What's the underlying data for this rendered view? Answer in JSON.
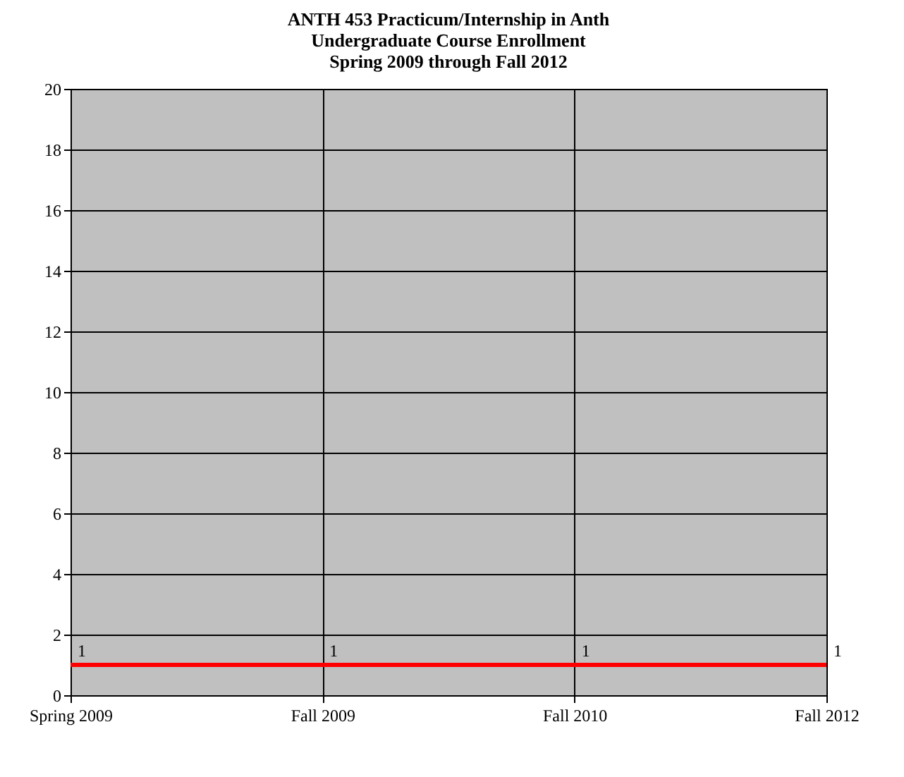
{
  "chart_data": {
    "type": "line",
    "title": "ANTH 453 Practicum/Internship in Anth\nUndergraduate Course Enrollment\nSpring 2009 through Fall 2012",
    "categories": [
      "Spring 2009",
      "Fall 2009",
      "Fall 2010",
      "Fall 2012"
    ],
    "series": [
      {
        "color": "#ff0000",
        "values": [
          1,
          1,
          1,
          1
        ]
      }
    ],
    "ylim": [
      0,
      20
    ],
    "yticks": [
      0,
      2,
      4,
      6,
      8,
      10,
      12,
      14,
      16,
      18,
      20
    ],
    "grid": true,
    "data_labels": true,
    "marker": "none",
    "line_style": "solid"
  }
}
